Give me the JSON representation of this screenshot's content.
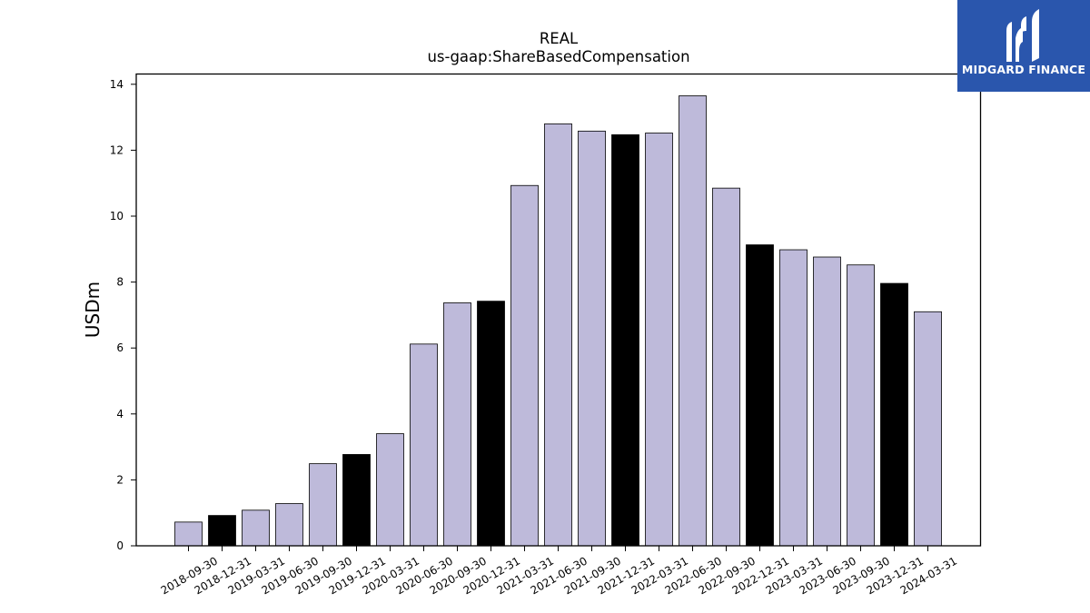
{
  "chart_data": {
    "type": "bar",
    "title": "REAL",
    "subtitle": "us-gaap:ShareBasedCompensation",
    "xlabel": "",
    "ylabel": "USDm",
    "ylim": [
      0,
      14.3
    ],
    "yticks": [
      0,
      2,
      4,
      6,
      8,
      10,
      12,
      14
    ],
    "grid": false,
    "categories": [
      "2018-09-30",
      "2018-12-31",
      "2019-03-31",
      "2019-06-30",
      "2019-09-30",
      "2019-12-31",
      "2020-03-31",
      "2020-06-30",
      "2020-09-30",
      "2020-12-31",
      "2021-03-31",
      "2021-06-30",
      "2021-09-30",
      "2021-12-31",
      "2022-03-31",
      "2022-06-30",
      "2022-09-30",
      "2022-12-31",
      "2023-03-31",
      "2023-06-30",
      "2023-09-30",
      "2023-12-31",
      "2024-03-31"
    ],
    "values": [
      0.72,
      0.92,
      1.08,
      1.28,
      2.49,
      2.77,
      3.4,
      6.12,
      7.37,
      7.42,
      10.93,
      12.8,
      12.58,
      12.47,
      12.52,
      13.65,
      10.85,
      9.13,
      8.98,
      8.76,
      8.52,
      7.96,
      7.1
    ],
    "colors": {
      "quarter": "#bebada",
      "year_end": "#000000",
      "edge": "#000000"
    },
    "highlight_categories": [
      "2018-12-31",
      "2019-12-31",
      "2020-12-31",
      "2021-12-31",
      "2022-12-31",
      "2023-12-31"
    ]
  },
  "logo": {
    "text": "MIDGARD FINANCE",
    "background": "#2a56ad"
  }
}
